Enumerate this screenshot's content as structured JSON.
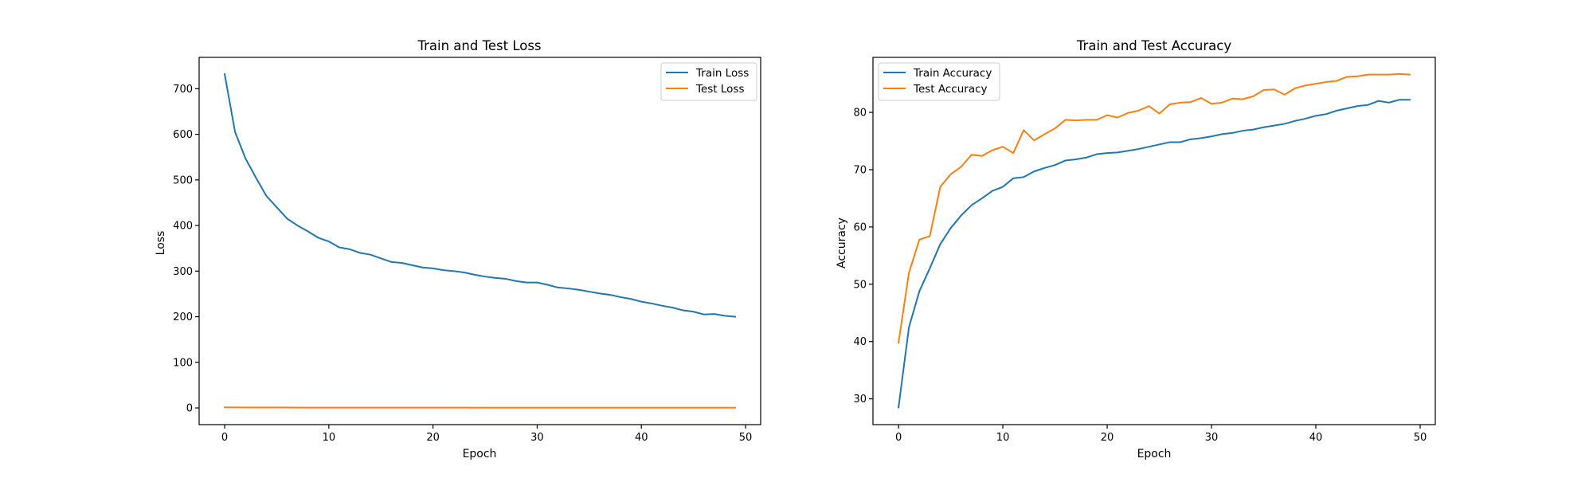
{
  "chart_data": [
    {
      "type": "line",
      "title": "Train and Test Loss",
      "xlabel": "Epoch",
      "ylabel": "Loss",
      "xlim": [
        -2.45,
        51.45
      ],
      "ylim": [
        -36.6,
        768.7
      ],
      "xticks": [
        0,
        10,
        20,
        30,
        40,
        50
      ],
      "yticks": [
        0,
        100,
        200,
        300,
        400,
        500,
        600,
        700
      ],
      "legend_position": "upper right",
      "grid": false,
      "series": [
        {
          "name": "Train Loss",
          "color": "#1f77b4",
          "x": [
            0,
            1,
            2,
            3,
            4,
            5,
            6,
            7,
            8,
            9,
            10,
            11,
            12,
            13,
            14,
            15,
            16,
            17,
            18,
            19,
            20,
            21,
            22,
            23,
            24,
            25,
            26,
            27,
            28,
            29,
            30,
            31,
            32,
            33,
            34,
            35,
            36,
            37,
            38,
            39,
            40,
            41,
            42,
            43,
            44,
            45,
            46,
            47,
            48,
            49
          ],
          "values": [
            732,
            605,
            547,
            505,
            465,
            440,
            415,
            400,
            387,
            373,
            365,
            352,
            348,
            340,
            336,
            328,
            320,
            318,
            313,
            308,
            306,
            302,
            300,
            297,
            292,
            288,
            285,
            283,
            278,
            275,
            275,
            270,
            264,
            262,
            259,
            255,
            251,
            248,
            243,
            239,
            233,
            229,
            224,
            220,
            214,
            211,
            205,
            206,
            202,
            200
          ]
        },
        {
          "name": "Test Loss",
          "color": "#ff7f0e",
          "x": [
            0,
            1,
            2,
            3,
            4,
            5,
            6,
            7,
            8,
            9,
            10,
            11,
            12,
            13,
            14,
            15,
            16,
            17,
            18,
            19,
            20,
            21,
            22,
            23,
            24,
            25,
            26,
            27,
            28,
            29,
            30,
            31,
            32,
            33,
            34,
            35,
            36,
            37,
            38,
            39,
            40,
            41,
            42,
            43,
            44,
            45,
            46,
            47,
            48,
            49
          ],
          "values": [
            1.2,
            1.1,
            1.0,
            1.0,
            0.9,
            0.9,
            0.9,
            0.8,
            0.8,
            0.8,
            0.8,
            0.8,
            0.8,
            0.7,
            0.7,
            0.7,
            0.7,
            0.7,
            0.7,
            0.7,
            0.7,
            0.7,
            0.7,
            0.7,
            0.6,
            0.6,
            0.6,
            0.6,
            0.6,
            0.6,
            0.6,
            0.6,
            0.6,
            0.6,
            0.6,
            0.6,
            0.6,
            0.6,
            0.6,
            0.6,
            0.6,
            0.6,
            0.6,
            0.6,
            0.6,
            0.6,
            0.6,
            0.6,
            0.6,
            0.6
          ]
        }
      ]
    },
    {
      "type": "line",
      "title": "Train and Test Accuracy",
      "xlabel": "Epoch",
      "ylabel": "Accuracy",
      "xlim": [
        -2.45,
        51.45
      ],
      "ylim": [
        25.5,
        89.6
      ],
      "xticks": [
        0,
        10,
        20,
        30,
        40,
        50
      ],
      "yticks": [
        30,
        40,
        50,
        60,
        70,
        80
      ],
      "legend_position": "upper left",
      "grid": false,
      "series": [
        {
          "name": "Train Accuracy",
          "color": "#1f77b4",
          "x": [
            0,
            1,
            2,
            3,
            4,
            5,
            6,
            7,
            8,
            9,
            10,
            11,
            12,
            13,
            14,
            15,
            16,
            17,
            18,
            19,
            20,
            21,
            22,
            23,
            24,
            25,
            26,
            27,
            28,
            29,
            30,
            31,
            32,
            33,
            34,
            35,
            36,
            37,
            38,
            39,
            40,
            41,
            42,
            43,
            44,
            45,
            46,
            47,
            48,
            49
          ],
          "values": [
            28.5,
            42.5,
            48.8,
            52.8,
            57.0,
            59.8,
            62.0,
            63.8,
            65.0,
            66.3,
            67.0,
            68.5,
            68.7,
            69.7,
            70.3,
            70.8,
            71.6,
            71.8,
            72.1,
            72.7,
            72.9,
            73.0,
            73.3,
            73.6,
            74.0,
            74.4,
            74.8,
            74.8,
            75.3,
            75.5,
            75.8,
            76.2,
            76.4,
            76.8,
            77.0,
            77.4,
            77.7,
            78.0,
            78.5,
            78.9,
            79.4,
            79.7,
            80.3,
            80.7,
            81.1,
            81.3,
            82.0,
            81.7,
            82.2,
            82.2
          ]
        },
        {
          "name": "Test Accuracy",
          "color": "#ff7f0e",
          "x": [
            0,
            1,
            2,
            3,
            4,
            5,
            6,
            7,
            8,
            9,
            10,
            11,
            12,
            13,
            14,
            15,
            16,
            17,
            18,
            19,
            20,
            21,
            22,
            23,
            24,
            25,
            26,
            27,
            28,
            29,
            30,
            31,
            32,
            33,
            34,
            35,
            36,
            37,
            38,
            39,
            40,
            41,
            42,
            43,
            44,
            45,
            46,
            47,
            48,
            49
          ],
          "values": [
            39.8,
            52.0,
            57.8,
            58.4,
            67.0,
            69.2,
            70.5,
            72.6,
            72.4,
            73.4,
            74.0,
            72.9,
            76.9,
            75.1,
            76.2,
            77.2,
            78.7,
            78.6,
            78.7,
            78.7,
            79.5,
            79.1,
            79.9,
            80.3,
            81.1,
            79.8,
            81.4,
            81.7,
            81.8,
            82.5,
            81.5,
            81.7,
            82.4,
            82.3,
            82.8,
            83.9,
            84.0,
            83.1,
            84.2,
            84.7,
            85.0,
            85.3,
            85.5,
            86.2,
            86.3,
            86.6,
            86.6,
            86.6,
            86.7,
            86.6
          ]
        }
      ]
    }
  ]
}
